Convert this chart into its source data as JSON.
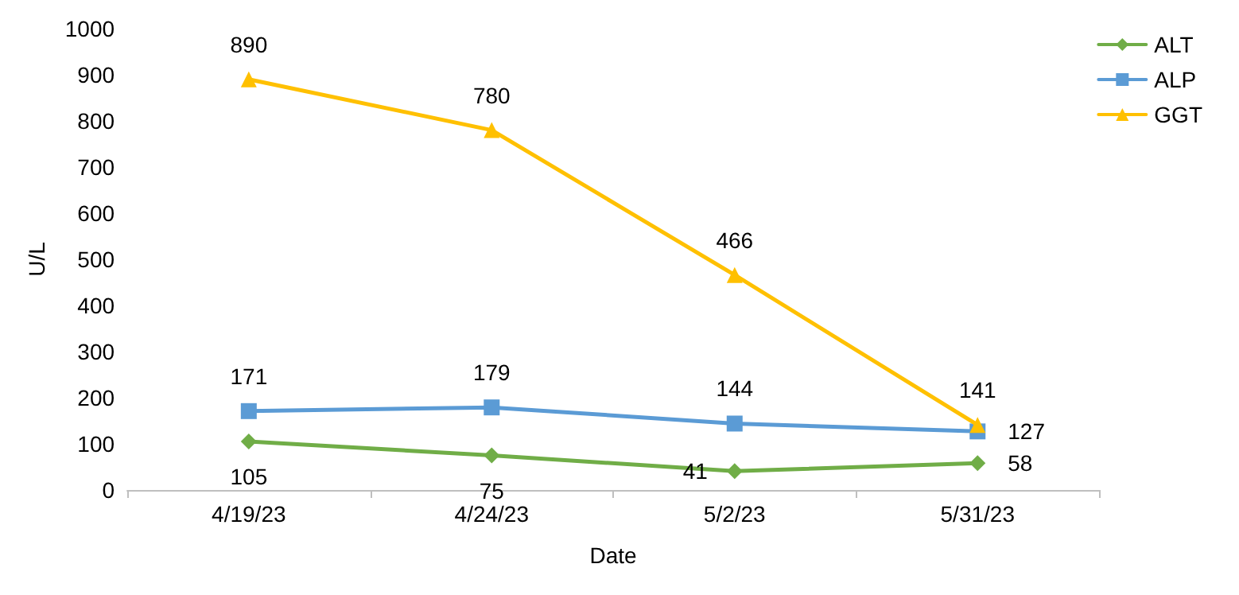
{
  "chart_data": {
    "type": "line",
    "xlabel": "Date",
    "ylabel": "U/L",
    "categories": [
      "4/19/23",
      "4/24/23",
      "5/2/23",
      "5/31/23"
    ],
    "series": [
      {
        "name": "ALT",
        "color": "#70ad47",
        "marker": "diamond",
        "values": [
          105,
          75,
          41,
          58
        ]
      },
      {
        "name": "ALP",
        "color": "#5b9bd5",
        "marker": "square",
        "values": [
          171,
          179,
          144,
          127
        ]
      },
      {
        "name": "GGT",
        "color": "#ffc000",
        "marker": "triangle",
        "values": [
          890,
          780,
          466,
          141
        ]
      }
    ],
    "ylim": [
      0,
      1000
    ],
    "yticks": [
      0,
      100,
      200,
      300,
      400,
      500,
      600,
      700,
      800,
      900,
      1000
    ],
    "grid": false,
    "legend": "top right",
    "data_labels": true,
    "line_style": "solid"
  }
}
